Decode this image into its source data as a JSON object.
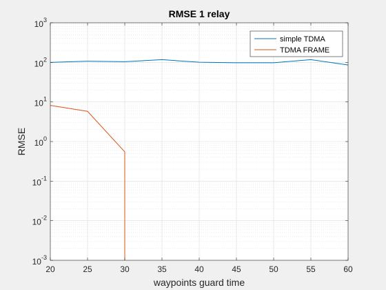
{
  "chart_data": {
    "type": "line",
    "title": "RMSE 1 relay",
    "xlabel": "waypoints guard time",
    "ylabel": "RMSE",
    "xlim": [
      20,
      60
    ],
    "ylim": [
      0.001,
      1000
    ],
    "yscale": "log",
    "grid": true,
    "minor_grid": true,
    "legend_position": "top-right",
    "x_ticks": [
      20,
      25,
      30,
      35,
      40,
      45,
      50,
      55,
      60
    ],
    "y_ticks": [
      {
        "value": 0.001,
        "base": "10",
        "exp": "-3"
      },
      {
        "value": 0.01,
        "base": "10",
        "exp": "-2"
      },
      {
        "value": 0.1,
        "base": "10",
        "exp": "-1"
      },
      {
        "value": 1,
        "base": "10",
        "exp": "0"
      },
      {
        "value": 10,
        "base": "10",
        "exp": "1"
      },
      {
        "value": 100,
        "base": "10",
        "exp": "2"
      },
      {
        "value": 1000,
        "base": "10",
        "exp": "3"
      }
    ],
    "series": [
      {
        "name": "simple TDMA",
        "color": "#0072BD",
        "x": [
          20,
          25,
          30,
          35,
          40,
          45,
          50,
          55,
          60
        ],
        "y": [
          100,
          107,
          104,
          117,
          101,
          98,
          98,
          117,
          86
        ]
      },
      {
        "name": "TDMA FRAME",
        "color": "#D95319",
        "x": [
          20,
          25,
          30,
          30
        ],
        "y": [
          8.2,
          5.8,
          0.55,
          0.001
        ]
      }
    ]
  }
}
